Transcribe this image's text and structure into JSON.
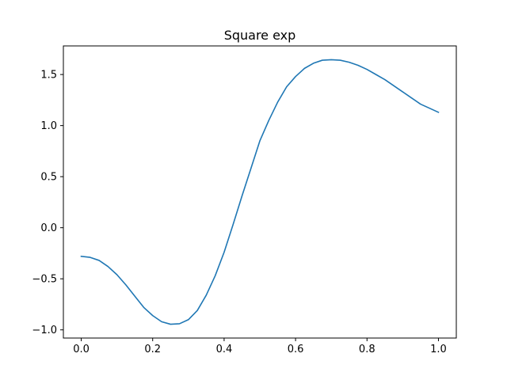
{
  "chart_data": {
    "type": "line",
    "title": "Square exp",
    "xlabel": "",
    "ylabel": "",
    "xlim": [
      -0.05,
      1.05
    ],
    "ylim": [
      -1.08,
      1.78
    ],
    "grid": false,
    "x_ticks": [
      {
        "value": 0.0,
        "label": "0.0"
      },
      {
        "value": 0.2,
        "label": "0.2"
      },
      {
        "value": 0.4,
        "label": "0.4"
      },
      {
        "value": 0.6,
        "label": "0.6"
      },
      {
        "value": 0.8,
        "label": "0.8"
      },
      {
        "value": 1.0,
        "label": "1.0"
      }
    ],
    "y_ticks": [
      {
        "value": -1.0,
        "label": "−1.0"
      },
      {
        "value": -0.5,
        "label": "−0.5"
      },
      {
        "value": 0.0,
        "label": "0.0"
      },
      {
        "value": 0.5,
        "label": "0.5"
      },
      {
        "value": 1.0,
        "label": "1.0"
      },
      {
        "value": 1.5,
        "label": "1.5"
      }
    ],
    "series": [
      {
        "color": "#1f77b4",
        "x": [
          0.0,
          0.025,
          0.05,
          0.075,
          0.1,
          0.125,
          0.15,
          0.175,
          0.2,
          0.225,
          0.25,
          0.275,
          0.3,
          0.325,
          0.35,
          0.375,
          0.4,
          0.425,
          0.45,
          0.475,
          0.5,
          0.525,
          0.55,
          0.575,
          0.6,
          0.625,
          0.65,
          0.675,
          0.7,
          0.725,
          0.75,
          0.775,
          0.8,
          0.825,
          0.85,
          0.875,
          0.9,
          0.925,
          0.95,
          0.975,
          1.0
        ],
        "y": [
          -0.28,
          -0.29,
          -0.32,
          -0.38,
          -0.46,
          -0.56,
          -0.67,
          -0.78,
          -0.86,
          -0.92,
          -0.945,
          -0.94,
          -0.9,
          -0.81,
          -0.66,
          -0.47,
          -0.24,
          0.03,
          0.31,
          0.58,
          0.85,
          1.05,
          1.23,
          1.38,
          1.48,
          1.56,
          1.61,
          1.64,
          1.645,
          1.64,
          1.62,
          1.59,
          1.55,
          1.5,
          1.45,
          1.39,
          1.33,
          1.27,
          1.21,
          1.17,
          1.13
        ]
      }
    ]
  }
}
